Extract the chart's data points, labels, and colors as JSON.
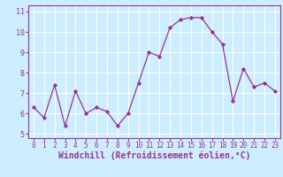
{
  "x": [
    0,
    1,
    2,
    3,
    4,
    5,
    6,
    7,
    8,
    9,
    10,
    11,
    12,
    13,
    14,
    15,
    16,
    17,
    18,
    19,
    20,
    21,
    22,
    23
  ],
  "y": [
    6.3,
    5.8,
    7.4,
    5.4,
    7.1,
    6.0,
    6.3,
    6.1,
    5.4,
    6.0,
    7.5,
    9.0,
    8.8,
    10.2,
    10.6,
    10.7,
    10.7,
    10.0,
    9.4,
    6.6,
    8.2,
    7.3,
    7.5,
    7.1
  ],
  "line_color": "#993399",
  "marker": "D",
  "marker_size": 2.2,
  "bg_color": "#cceeff",
  "grid_color": "#ffffff",
  "xlabel": "Windchill (Refroidissement éolien,°C)",
  "xlabel_fontsize": 7,
  "xtick_fontsize": 5.5,
  "ytick_fontsize": 6,
  "xlim": [
    -0.5,
    23.5
  ],
  "ylim": [
    4.8,
    11.3
  ],
  "yticks": [
    5,
    6,
    7,
    8,
    9,
    10,
    11
  ],
  "xticks": [
    0,
    1,
    2,
    3,
    4,
    5,
    6,
    7,
    8,
    9,
    10,
    11,
    12,
    13,
    14,
    15,
    16,
    17,
    18,
    19,
    20,
    21,
    22,
    23
  ],
  "spine_color": "#993399",
  "tick_color": "#993399",
  "label_color": "#993399"
}
